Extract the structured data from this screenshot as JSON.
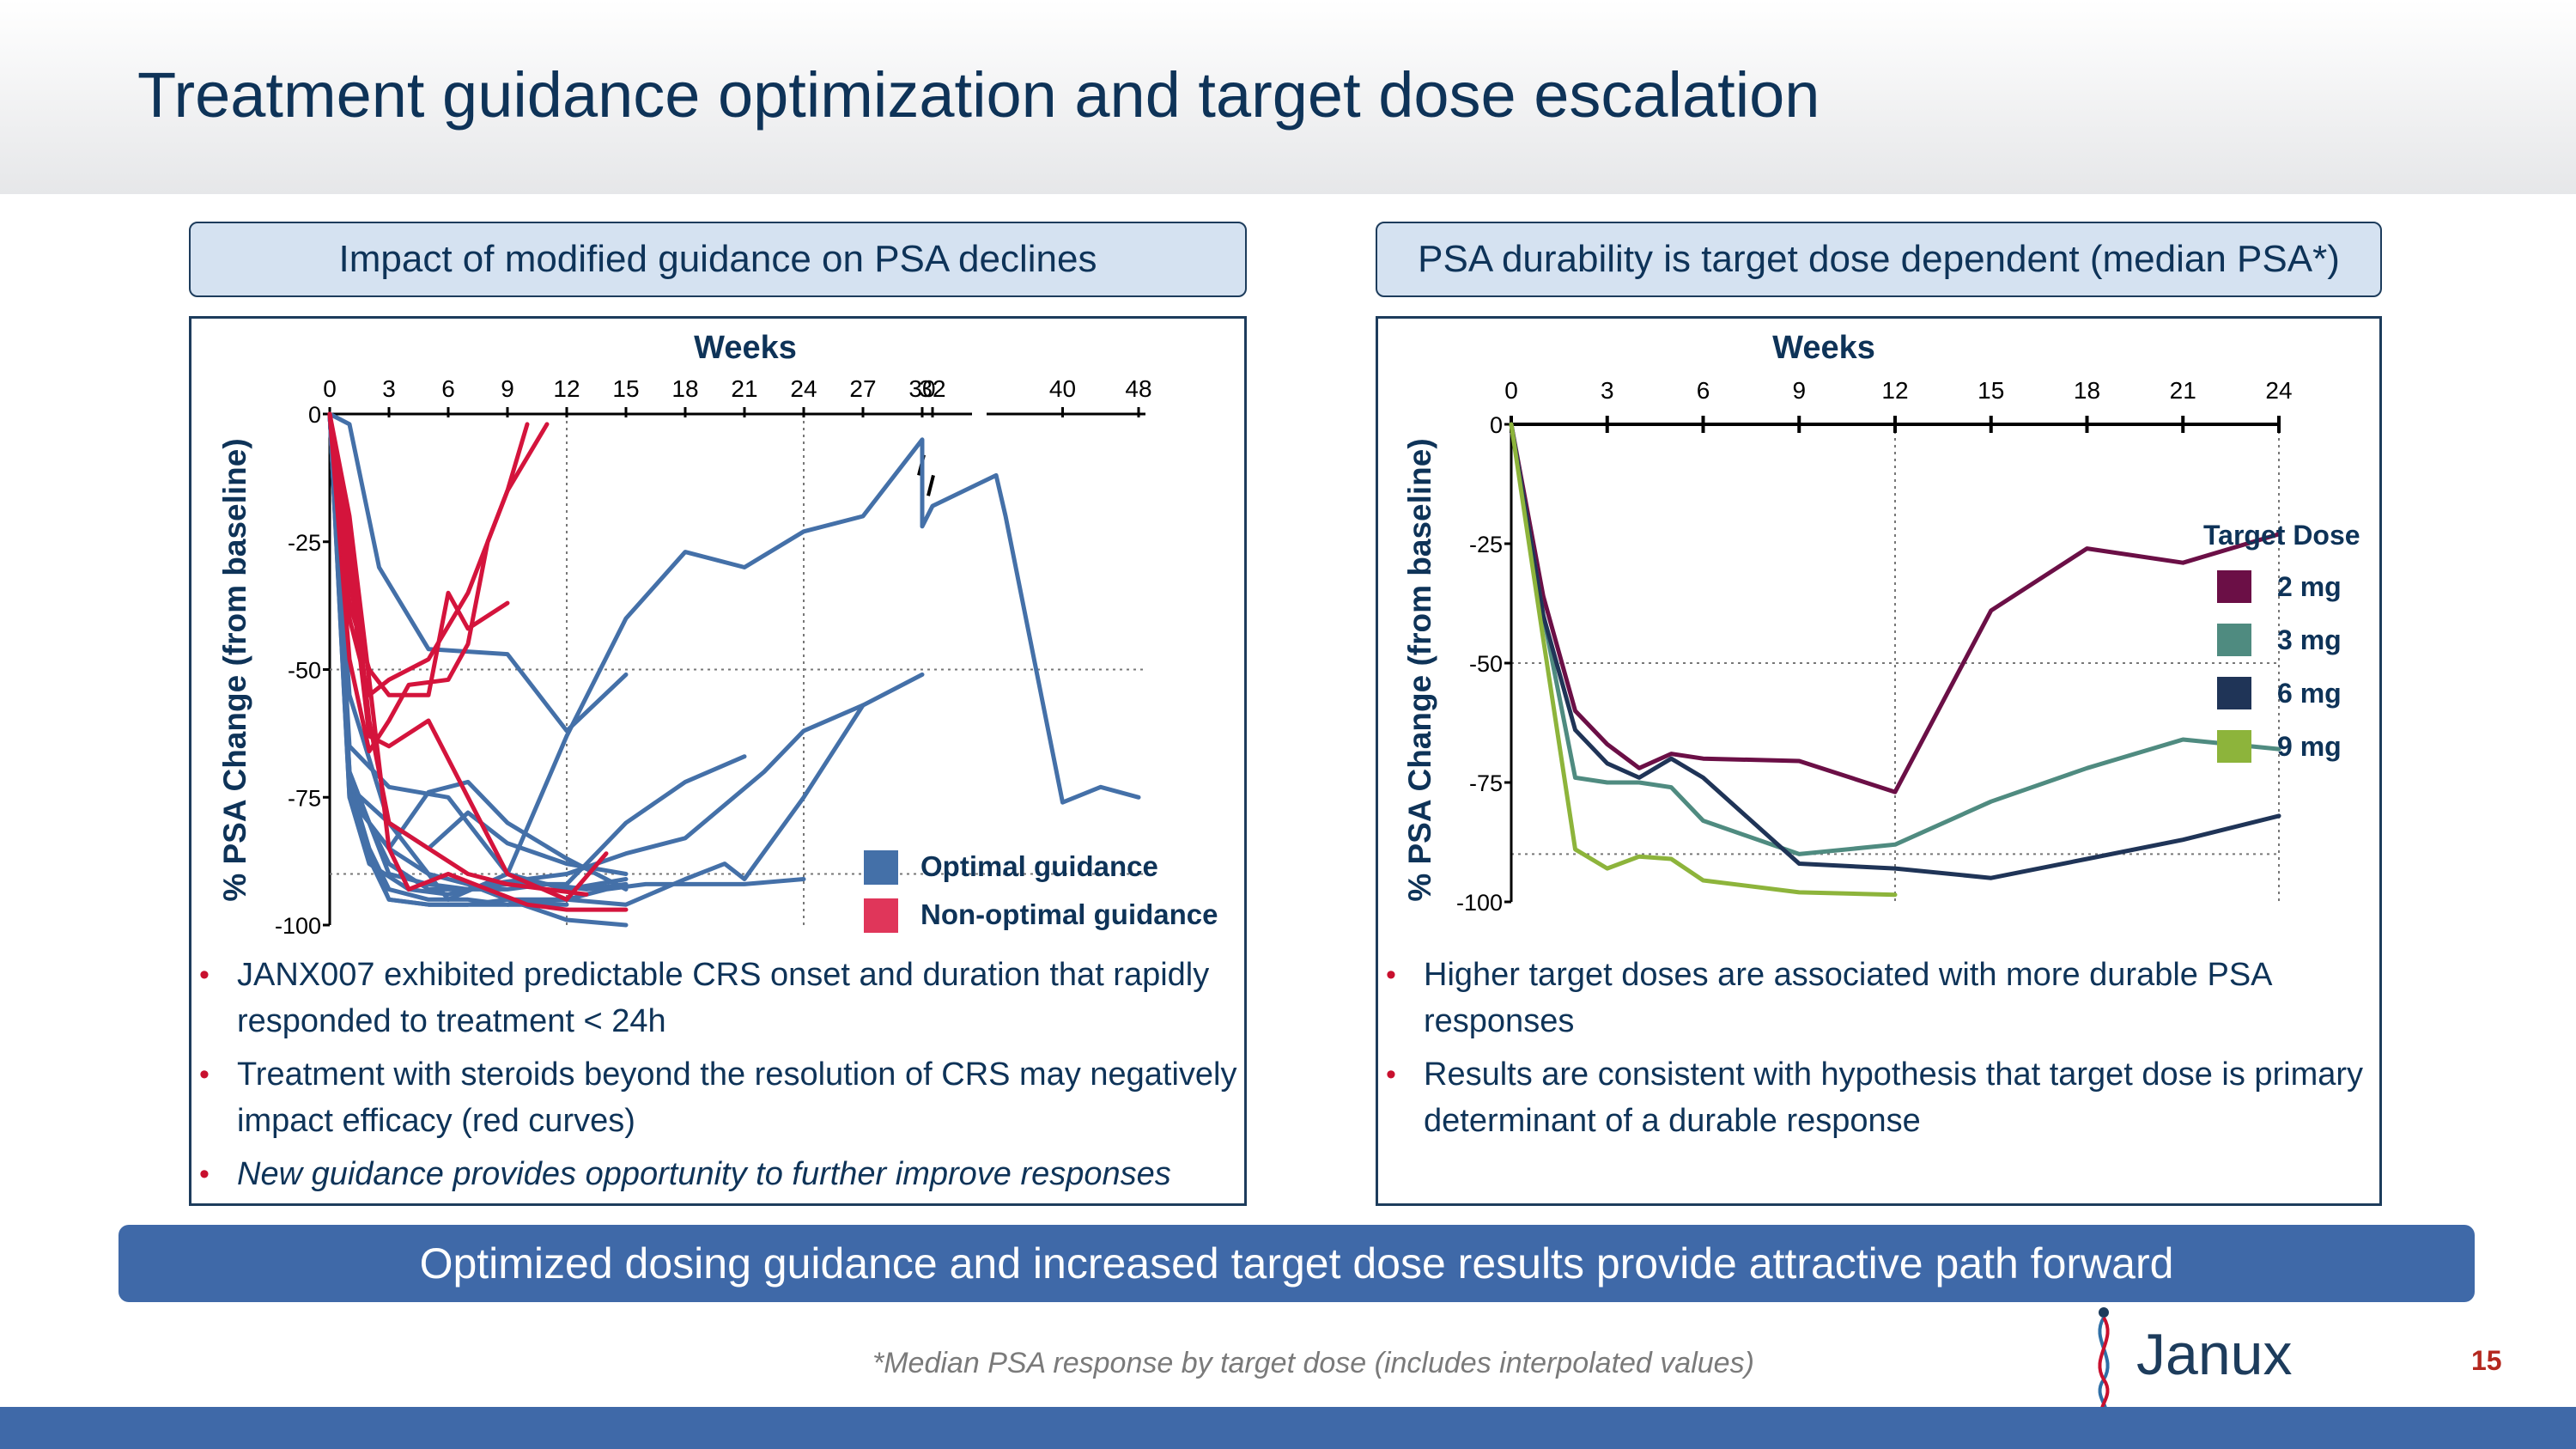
{
  "title": "Treatment guidance optimization and target dose escalation",
  "left_panel": {
    "header": "Impact of modified guidance on PSA declines",
    "bullets": [
      {
        "text": "JANX007 exhibited predictable CRS onset and duration that rapidly responded to treatment < 24h"
      },
      {
        "text": "Treatment with steroids beyond the resolution of CRS may negatively impact efficacy (red curves)"
      },
      {
        "text": "New guidance provides opportunity to further improve responses"
      }
    ]
  },
  "right_panel": {
    "header": "PSA durability is target dose dependent (median PSA*)",
    "bullets": [
      {
        "text": "Higher target doses are associated with more durable PSA responses"
      },
      {
        "text": "Results are consistent with hypothesis that target dose is primary determinant of a durable response"
      }
    ]
  },
  "chart_data": [
    {
      "type": "line",
      "title": "",
      "xlabel": "Weeks",
      "ylabel": "% PSA Change (from baseline)",
      "x_ticks": [
        "0",
        "3",
        "6",
        "9",
        "12",
        "15",
        "18",
        "21",
        "24",
        "27",
        "30",
        "32",
        "40",
        "48"
      ],
      "y_ticks": [
        "0",
        "-25",
        "-50",
        "-75",
        "-100"
      ],
      "ylim": [
        -100,
        0
      ],
      "axis_break_after_week": 30,
      "legend": [
        {
          "label": "Optimal guidance",
          "color": "#4470a8"
        },
        {
          "label": "Non-optimal guidance",
          "color": "#e0365a"
        }
      ],
      "series": [
        {
          "group": "optimal",
          "x": [
            0,
            1,
            2.5,
            5,
            9,
            12,
            15
          ],
          "y": [
            0,
            -2,
            -30,
            -46,
            -47,
            -62,
            -51
          ]
        },
        {
          "group": "optimal",
          "x": [
            0,
            1,
            3,
            6,
            9,
            12,
            15,
            18,
            21,
            24,
            27,
            30,
            31,
            32,
            33,
            34,
            40,
            44,
            48
          ],
          "y": [
            0,
            -55,
            -80,
            -95,
            -90,
            -63,
            -40,
            -27,
            -30,
            -23,
            -20,
            -5,
            -22,
            -18,
            -12,
            -20,
            -76,
            -73,
            -75
          ]
        },
        {
          "group": "optimal",
          "x": [
            0,
            1,
            3,
            6,
            9,
            12,
            15
          ],
          "y": [
            0,
            -65,
            -73,
            -75,
            -90,
            -93,
            -91
          ]
        },
        {
          "group": "optimal",
          "x": [
            0,
            1,
            3,
            5,
            7,
            9,
            11,
            13,
            15
          ],
          "y": [
            0,
            -70,
            -90,
            -92,
            -93,
            -93,
            -92,
            -93,
            -92
          ]
        },
        {
          "group": "optimal",
          "x": [
            0,
            1,
            2,
            3,
            5,
            7,
            9,
            12,
            14,
            16,
            18,
            21,
            24
          ],
          "y": [
            0,
            -72,
            -85,
            -93,
            -95,
            -95,
            -96,
            -95,
            -93,
            -92,
            -92,
            -92,
            -91
          ]
        },
        {
          "group": "optimal",
          "x": [
            0,
            1,
            2,
            3,
            5,
            7,
            9,
            12
          ],
          "y": [
            0,
            -72,
            -86,
            -95,
            -96,
            -96,
            -96,
            -96
          ]
        },
        {
          "group": "optimal",
          "x": [
            0,
            1,
            2,
            3,
            5,
            7,
            9,
            12,
            15,
            18,
            20,
            21,
            24,
            27
          ],
          "y": [
            0,
            -72,
            -87,
            -95,
            -96,
            -96,
            -95,
            -95,
            -96,
            -91,
            -88,
            -91,
            -75,
            -57
          ]
        },
        {
          "group": "optimal",
          "x": [
            0,
            1,
            2,
            3,
            5,
            7,
            9,
            12,
            15,
            18,
            21
          ],
          "y": [
            0,
            -72,
            -80,
            -88,
            -93,
            -93,
            -92,
            -92,
            -80,
            -72,
            -67
          ]
        },
        {
          "group": "optimal",
          "x": [
            0,
            1,
            2,
            4,
            6,
            8,
            12,
            15,
            18,
            22,
            24,
            27,
            30
          ],
          "y": [
            0,
            -75,
            -88,
            -93,
            -94,
            -92,
            -90,
            -86,
            -83,
            -70,
            -62,
            -57,
            -51
          ]
        },
        {
          "group": "optimal",
          "x": [
            0,
            1,
            3,
            5,
            7,
            9,
            12,
            15
          ],
          "y": [
            0,
            -73,
            -80,
            -85,
            -78,
            -84,
            -88,
            -90
          ]
        },
        {
          "group": "optimal",
          "x": [
            0,
            1,
            2,
            3,
            5,
            7,
            9,
            12,
            15
          ],
          "y": [
            0,
            -70,
            -80,
            -85,
            -74,
            -72,
            -80,
            -87,
            -93
          ]
        },
        {
          "group": "optimal",
          "x": [
            0,
            1,
            2,
            3,
            5,
            7,
            9,
            12,
            15
          ],
          "y": [
            0,
            -75,
            -80,
            -85,
            -90,
            -92,
            -95,
            -99,
            -100
          ]
        },
        {
          "group": "non-optimal",
          "x": [
            0,
            1,
            2,
            3,
            4,
            6,
            7,
            8,
            9,
            10
          ],
          "y": [
            0,
            -48,
            -66,
            -60,
            -53,
            -52,
            -45,
            -25,
            -15,
            -2
          ]
        },
        {
          "group": "non-optimal",
          "x": [
            0,
            1,
            2,
            3,
            5,
            7,
            9,
            11
          ],
          "y": [
            0,
            -40,
            -55,
            -52,
            -48,
            -35,
            -15,
            -2
          ]
        },
        {
          "group": "non-optimal",
          "x": [
            0,
            1,
            2,
            3,
            5,
            6,
            7,
            9
          ],
          "y": [
            0,
            -37,
            -50,
            -55,
            -55,
            -35,
            -42,
            -37
          ]
        },
        {
          "group": "non-optimal",
          "x": [
            0,
            1,
            2,
            3,
            5,
            7,
            9,
            12,
            14
          ],
          "y": [
            0,
            -30,
            -63,
            -65,
            -60,
            -75,
            -90,
            -95,
            -86
          ]
        },
        {
          "group": "non-optimal",
          "x": [
            0,
            1,
            2,
            3,
            4,
            6,
            8,
            10,
            12,
            15
          ],
          "y": [
            0,
            -20,
            -52,
            -85,
            -93,
            -90,
            -93,
            -96,
            -97,
            -97
          ]
        },
        {
          "group": "non-optimal",
          "x": [
            0,
            1,
            2,
            3,
            5,
            7,
            9,
            11,
            13
          ],
          "y": [
            0,
            -25,
            -60,
            -80,
            -85,
            -90,
            -92,
            -93,
            -94
          ]
        }
      ]
    },
    {
      "type": "line",
      "title": "",
      "xlabel": "Weeks",
      "ylabel": "% PSA Change (from baseline)",
      "x_ticks": [
        "0",
        "3",
        "6",
        "9",
        "12",
        "15",
        "18",
        "21",
        "24"
      ],
      "y_ticks": [
        "0",
        "-25",
        "-50",
        "-75",
        "-100"
      ],
      "ylim": [
        -100,
        0
      ],
      "legend_title": "Target Dose",
      "series": [
        {
          "name": "2 mg",
          "color": "#6b0f46",
          "x": [
            0,
            1,
            2,
            3,
            4,
            5,
            6,
            9,
            12,
            15,
            18,
            21,
            24
          ],
          "y": [
            0,
            -36,
            -60,
            -67,
            -72,
            -69,
            -70,
            -70.5,
            -77,
            -39,
            -26,
            -29,
            -23
          ]
        },
        {
          "name": "3 mg",
          "color": "#4f8b80",
          "x": [
            0,
            1,
            2,
            3,
            4,
            5,
            6,
            9,
            12,
            15,
            18,
            21,
            24
          ],
          "y": [
            0,
            -40,
            -74,
            -75,
            -75,
            -76,
            -83,
            -90,
            -88,
            -79,
            -72,
            -66,
            -68
          ]
        },
        {
          "name": "6 mg",
          "color": "#1f3457",
          "x": [
            0,
            1,
            2,
            3,
            4,
            5,
            6,
            9,
            12,
            15,
            18,
            21,
            24
          ],
          "y": [
            0,
            -40,
            -64,
            -71,
            -74,
            -70,
            -74,
            -92,
            -93,
            -95,
            -91,
            -87,
            -82
          ]
        },
        {
          "name": "9 mg",
          "color": "#8db43b",
          "x": [
            0,
            1,
            2,
            3,
            4,
            5,
            6,
            9,
            12
          ],
          "y": [
            0,
            -45,
            -89,
            -93,
            -90.5,
            -91,
            -95.5,
            -98,
            -98.5
          ]
        }
      ]
    }
  ],
  "banner": "Optimized dosing guidance and increased target dose results provide attractive path forward",
  "footnote": "*Median PSA response by target dose (includes interpolated values)",
  "logo": {
    "text": "Janux"
  },
  "page_number": "15"
}
